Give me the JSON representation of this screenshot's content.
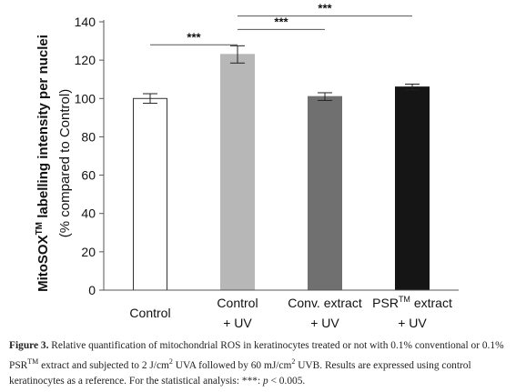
{
  "chart_data": {
    "type": "bar",
    "categories": [
      {
        "lines": [
          "Control"
        ],
        "sup": ""
      },
      {
        "lines": [
          "Control",
          "+ UV"
        ],
        "sup": ""
      },
      {
        "lines": [
          "Conv. extract",
          "+ UV"
        ],
        "sup": ""
      },
      {
        "lines": [
          "PSR extract",
          "+ UV"
        ],
        "sup": "TM"
      }
    ],
    "values": [
      100,
      123,
      101,
      106
    ],
    "errors": [
      2.5,
      4.5,
      2.0,
      1.5
    ],
    "bar_colors": [
      "#ffffff",
      "#b7b7b7",
      "#707070",
      "#151515"
    ],
    "ylim": [
      0,
      140
    ],
    "yticks": [
      0,
      20,
      40,
      60,
      80,
      100,
      120,
      140
    ],
    "ylabel_line1": "MitoSOX",
    "ylabel_line1_sup": "TM",
    "ylabel_line1_rest": " labelling intensity per nuclei",
    "ylabel_line2": "(% compared to Control)",
    "significance": [
      {
        "from": 0,
        "to": 1,
        "y": 128,
        "label": "***"
      },
      {
        "from": 1,
        "to": 2,
        "y": 136,
        "label": "***"
      },
      {
        "from": 1,
        "to": 3,
        "y": 143,
        "label": "***"
      }
    ]
  },
  "caption": {
    "label": "Figure 3.",
    "text_a": " Relative quantification of mitochondrial ROS in keratinocytes treated or not with 0.1% conventional or 0.1% PSR",
    "tm": "TM",
    "text_b": " extract and subjected to 2 J/cm",
    "sup2": "2",
    "text_c": " UVA followed by 60 mJ/cm",
    "sup2b": "2",
    "text_d": " UVB. Results are expressed using control keratinocytes as a reference. For the statistical analysis: ***: ",
    "p": "p",
    "text_e": " < 0.005."
  }
}
